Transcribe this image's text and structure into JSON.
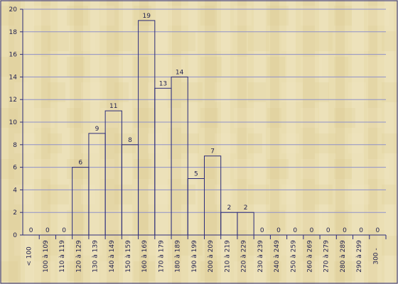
{
  "chart_data": {
    "type": "bar",
    "title": "",
    "xlabel": "",
    "ylabel": "",
    "ylim": [
      0,
      20
    ],
    "y_ticks": [
      0,
      2,
      4,
      6,
      8,
      10,
      12,
      14,
      16,
      18,
      20
    ],
    "grid": "horizontal",
    "categories": [
      "< 100",
      "100 à 109",
      "110 à 119",
      "120 à 129",
      "130 à 139",
      "140 à 149",
      "150 à 159",
      "160 à 169",
      "170 à 179",
      "180 à 189",
      "190 à 199",
      "200 à 209",
      "210 à 219",
      "220 à 229",
      "230 à 239",
      "240 à 249",
      "250 à 259",
      "260 à 269",
      "270 à 279",
      "280 à 289",
      "290 à 299",
      "300 -"
    ],
    "values": [
      0,
      0,
      0,
      6,
      9,
      11,
      8,
      19,
      13,
      14,
      5,
      7,
      2,
      2,
      0,
      0,
      0,
      0,
      0,
      0,
      0,
      0
    ],
    "colors": {
      "background": "#e9ddb0",
      "wood_dark": "#d8c58d",
      "wood_light": "#f2e8c7",
      "axis": "#2b2b7a",
      "grid": "#8f91c9",
      "bar_stroke": "#2b2b7a"
    }
  }
}
